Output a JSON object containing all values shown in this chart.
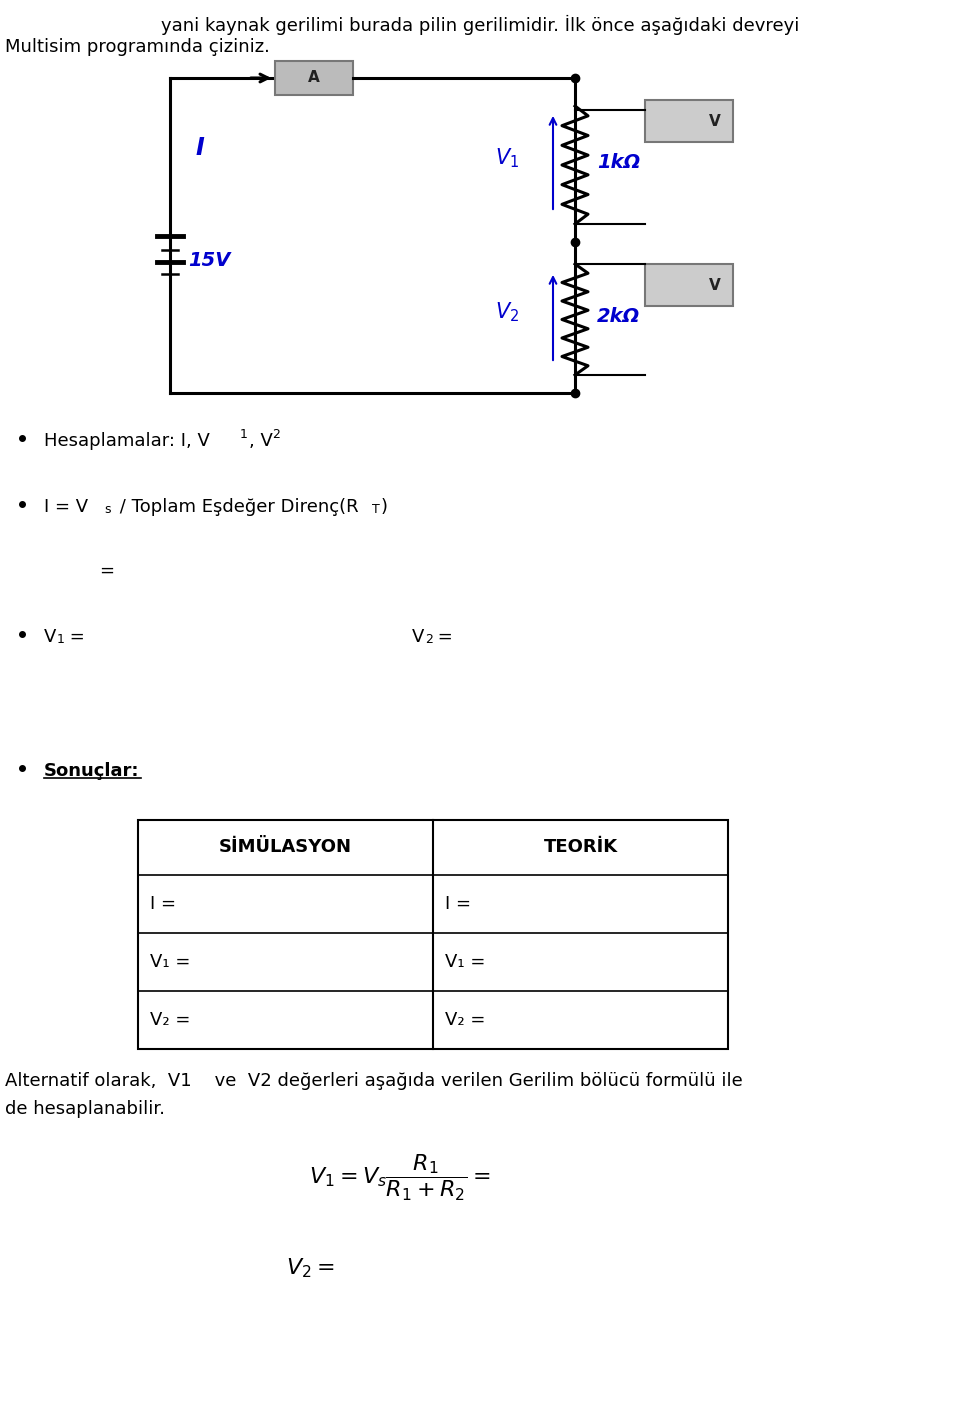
{
  "text_top1": "yani kaynak gerilimi burada pilin gerilimidir. İlk önce aşağıdaki devreyi",
  "text_top2": "Multisim programında çiziniz.",
  "bullet1_main": "Hesaplamalar: I, V",
  "bullet2_main": "I = V",
  "bullet2_sub_s": "s",
  "bullet2_rest": " / Toplam Eşdeğer Direnç(R",
  "bullet2_sub_T": "T",
  "bullet2_close": ")",
  "equals_line": "=",
  "bullet_sonuclar": "Sonuçlar:",
  "table_col1": "SİMÜLASYON",
  "table_col2": "TEORİK",
  "table_rows": [
    [
      "I =",
      "I ="
    ],
    [
      "V₁ =",
      "V₁ ="
    ],
    [
      "V₂ =",
      "V₂ ="
    ]
  ],
  "alt_text1": "Alternatif olarak,  V1    ve  V2 değerleri aşağıda verilen Gerilim bölücü formülü ile",
  "alt_text2": "de hesaplanabilir.",
  "formula1": "$V_1 = V_s \\dfrac{R_1}{R_1 + R_2} =$",
  "formula2": "$V_2 =$",
  "bg_color": "#ffffff",
  "text_color": "#000000",
  "blue_color": "#0000cd",
  "circuit_line_color": "#000000",
  "fig_width": 9.6,
  "fig_height": 14.18,
  "ammeter_color": "#aaaaaa",
  "voltmeter_color": "#cccccc"
}
